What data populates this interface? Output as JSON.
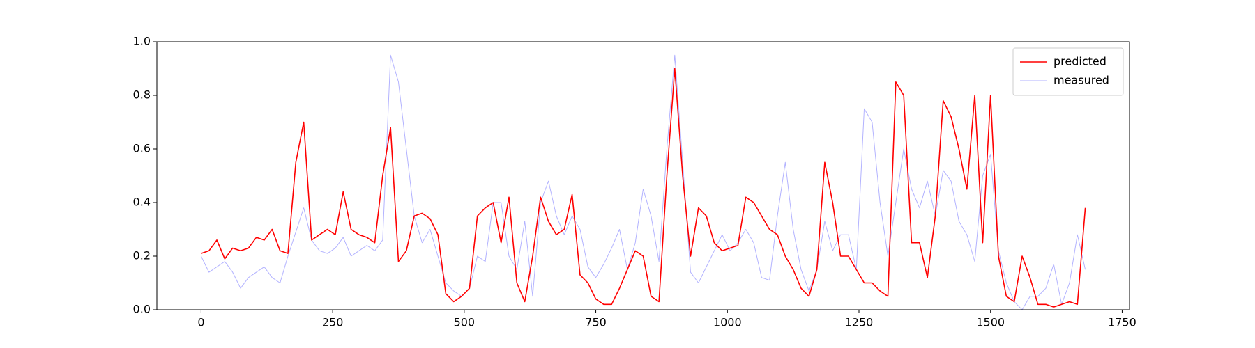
{
  "chart_data": {
    "type": "line",
    "x": [
      0,
      15,
      30,
      45,
      60,
      75,
      90,
      105,
      120,
      135,
      150,
      165,
      180,
      195,
      210,
      225,
      240,
      255,
      270,
      285,
      300,
      315,
      330,
      345,
      360,
      375,
      390,
      405,
      420,
      435,
      450,
      465,
      480,
      495,
      510,
      525,
      540,
      555,
      570,
      585,
      600,
      615,
      630,
      645,
      660,
      675,
      690,
      705,
      720,
      735,
      750,
      765,
      780,
      795,
      810,
      825,
      840,
      855,
      870,
      885,
      900,
      915,
      930,
      945,
      960,
      975,
      990,
      1005,
      1020,
      1035,
      1050,
      1065,
      1080,
      1095,
      1110,
      1125,
      1140,
      1155,
      1170,
      1185,
      1200,
      1215,
      1230,
      1245,
      1260,
      1275,
      1290,
      1305,
      1320,
      1335,
      1350,
      1365,
      1380,
      1395,
      1410,
      1425,
      1440,
      1455,
      1470,
      1485,
      1500,
      1515,
      1530,
      1545,
      1560,
      1575,
      1590,
      1605,
      1620,
      1635,
      1650,
      1665,
      1680
    ],
    "series": [
      {
        "name": "predicted",
        "color": "#ff0000",
        "width": 1.6,
        "opacity": 1,
        "values": [
          0.21,
          0.22,
          0.26,
          0.19,
          0.23,
          0.22,
          0.23,
          0.27,
          0.26,
          0.3,
          0.22,
          0.21,
          0.55,
          0.7,
          0.26,
          0.28,
          0.3,
          0.28,
          0.44,
          0.3,
          0.28,
          0.27,
          0.25,
          0.5,
          0.68,
          0.18,
          0.22,
          0.35,
          0.36,
          0.34,
          0.28,
          0.06,
          0.03,
          0.05,
          0.08,
          0.35,
          0.38,
          0.4,
          0.25,
          0.42,
          0.1,
          0.03,
          0.2,
          0.42,
          0.33,
          0.28,
          0.3,
          0.43,
          0.13,
          0.1,
          0.04,
          0.02,
          0.02,
          0.08,
          0.15,
          0.22,
          0.2,
          0.05,
          0.03,
          0.5,
          0.9,
          0.5,
          0.2,
          0.38,
          0.35,
          0.25,
          0.22,
          0.23,
          0.24,
          0.42,
          0.4,
          0.35,
          0.3,
          0.28,
          0.2,
          0.15,
          0.08,
          0.05,
          0.15,
          0.55,
          0.4,
          0.2,
          0.2,
          0.15,
          0.1,
          0.1,
          0.07,
          0.05,
          0.85,
          0.8,
          0.25,
          0.25,
          0.12,
          0.35,
          0.78,
          0.72,
          0.6,
          0.45,
          0.8,
          0.25,
          0.8,
          0.2,
          0.05,
          0.03,
          0.2,
          0.12,
          0.02,
          0.02,
          0.01,
          0.02,
          0.03,
          0.02,
          0.38
        ]
      },
      {
        "name": "measured",
        "color": "#0000ff",
        "width": 1,
        "opacity": 0.3,
        "values": [
          0.2,
          0.14,
          0.16,
          0.18,
          0.14,
          0.08,
          0.12,
          0.14,
          0.16,
          0.12,
          0.1,
          0.2,
          0.29,
          0.38,
          0.26,
          0.22,
          0.21,
          0.23,
          0.27,
          0.2,
          0.22,
          0.24,
          0.22,
          0.26,
          0.95,
          0.85,
          0.6,
          0.35,
          0.25,
          0.3,
          0.2,
          0.1,
          0.07,
          0.05,
          0.08,
          0.2,
          0.18,
          0.4,
          0.4,
          0.2,
          0.15,
          0.33,
          0.05,
          0.4,
          0.48,
          0.35,
          0.28,
          0.35,
          0.3,
          0.16,
          0.12,
          0.17,
          0.23,
          0.3,
          0.15,
          0.25,
          0.45,
          0.35,
          0.18,
          0.6,
          0.95,
          0.55,
          0.14,
          0.1,
          0.16,
          0.22,
          0.28,
          0.22,
          0.25,
          0.3,
          0.25,
          0.12,
          0.11,
          0.35,
          0.55,
          0.3,
          0.15,
          0.07,
          0.15,
          0.33,
          0.22,
          0.28,
          0.28,
          0.15,
          0.75,
          0.7,
          0.4,
          0.2,
          0.4,
          0.6,
          0.45,
          0.38,
          0.48,
          0.35,
          0.52,
          0.48,
          0.33,
          0.28,
          0.18,
          0.5,
          0.58,
          0.22,
          0.1,
          0.03,
          0.0,
          0.05,
          0.05,
          0.08,
          0.17,
          0.02,
          0.1,
          0.28,
          0.15
        ]
      }
    ],
    "xlim": [
      -84,
      1764
    ],
    "ylim": [
      0,
      1
    ],
    "xticks": [
      0,
      250,
      500,
      750,
      1000,
      1250,
      1500,
      1750
    ],
    "yticks": [
      {
        "value": 0,
        "label": "0.0"
      },
      0.2,
      0.4,
      0.6,
      0.8,
      {
        "value": 1,
        "label": "1.0"
      }
    ],
    "legend": "upper right",
    "grid": false
  }
}
